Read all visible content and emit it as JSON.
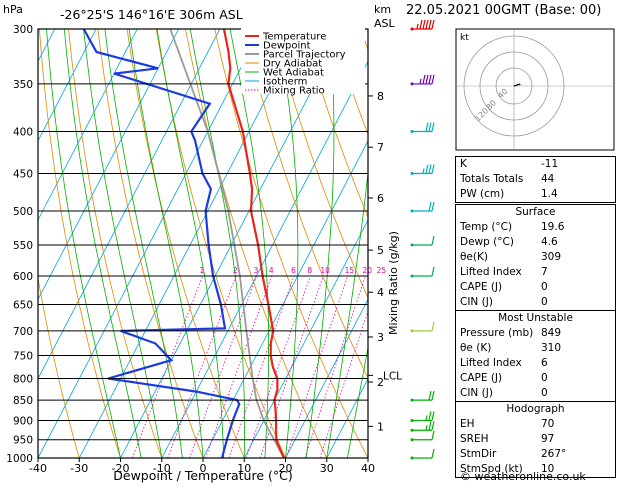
{
  "chart_data": {
    "type": "skewt",
    "station": "-26°25'S  146°16'E  306m  ASL",
    "valid_time": "22.05.2021  00GMT  (Base: 00)",
    "xlabel": "Dewpoint / Temperature (°C)",
    "ylabel_left": "hPa",
    "ylabel_right_top": "km",
    "ylabel_right_top2": "ASL",
    "mixing_ratio_label": "Mixing Ratio (g/kg)",
    "xlim": [
      -40,
      40
    ],
    "ylim": [
      1000,
      300
    ],
    "x_ticks": [
      "-40",
      "-30",
      "-20",
      "-10",
      "0",
      "10",
      "20",
      "30",
      "40"
    ],
    "pressure_ticks": [
      "300",
      "350",
      "400",
      "450",
      "500",
      "550",
      "600",
      "650",
      "700",
      "750",
      "800",
      "850",
      "900",
      "950",
      "1000"
    ],
    "altitude_ticks": [
      {
        "label": "1",
        "p": 915
      },
      {
        "label": "2",
        "p": 808
      },
      {
        "label": "3",
        "p": 712
      },
      {
        "label": "4",
        "p": 628
      },
      {
        "label": "5",
        "p": 558
      },
      {
        "label": "6",
        "p": 482
      },
      {
        "label": "7",
        "p": 418
      },
      {
        "label": "8",
        "p": 362
      }
    ],
    "lcl": {
      "label": "LCL",
      "p": 793
    },
    "mixing_ratio_values": [
      "1",
      "2",
      "3",
      "4",
      "6",
      "8",
      "10",
      "15",
      "20",
      "25"
    ],
    "legend": [
      "Temperature",
      "Dewpoint",
      "Parcel Trajectory",
      "Dry Adiabat",
      "Wet Adiabat",
      "Isotherm",
      "Mixing Ratio"
    ],
    "colors": {
      "temperature": "#e8241c",
      "dewpoint": "#1c3ae0",
      "parcel": "#9a9a9a",
      "dry_adiabat": "#e08a00",
      "wet_adiabat": "#00b000",
      "isotherm": "#00a4e0",
      "mixing_ratio": "#e000b0"
    },
    "temperature": [
      {
        "p": 1000,
        "t": 19.6
      },
      {
        "p": 975,
        "t": 17.5
      },
      {
        "p": 950,
        "t": 15.5
      },
      {
        "p": 925,
        "t": 14.2
      },
      {
        "p": 900,
        "t": 13.0
      },
      {
        "p": 875,
        "t": 11.6
      },
      {
        "p": 850,
        "t": 10.0
      },
      {
        "p": 825,
        "t": 9.4
      },
      {
        "p": 800,
        "t": 8.0
      },
      {
        "p": 775,
        "t": 5.5
      },
      {
        "p": 750,
        "t": 3.5
      },
      {
        "p": 725,
        "t": 2.0
      },
      {
        "p": 700,
        "t": 1.0
      },
      {
        "p": 650,
        "t": -3.5
      },
      {
        "p": 600,
        "t": -8.5
      },
      {
        "p": 550,
        "t": -13.5
      },
      {
        "p": 500,
        "t": -19.5
      },
      {
        "p": 470,
        "t": -22.0
      },
      {
        "p": 450,
        "t": -24.5
      },
      {
        "p": 400,
        "t": -31.5
      },
      {
        "p": 350,
        "t": -41.0
      },
      {
        "p": 335,
        "t": -42.5
      },
      {
        "p": 320,
        "t": -45.0
      },
      {
        "p": 300,
        "t": -49.0
      }
    ],
    "dewpoint": [
      {
        "p": 1000,
        "t": 4.6
      },
      {
        "p": 950,
        "t": 3.5
      },
      {
        "p": 900,
        "t": 2.5
      },
      {
        "p": 860,
        "t": 2.0
      },
      {
        "p": 850,
        "t": 1.0
      },
      {
        "p": 830,
        "t": -10.0
      },
      {
        "p": 800,
        "t": -33.0
      },
      {
        "p": 760,
        "t": -20.0
      },
      {
        "p": 725,
        "t": -26.0
      },
      {
        "p": 700,
        "t": -36.0
      },
      {
        "p": 695,
        "t": -11.0
      },
      {
        "p": 650,
        "t": -15.0
      },
      {
        "p": 600,
        "t": -20.5
      },
      {
        "p": 550,
        "t": -25.5
      },
      {
        "p": 500,
        "t": -30.5
      },
      {
        "p": 470,
        "t": -32.0
      },
      {
        "p": 450,
        "t": -36.0
      },
      {
        "p": 410,
        "t": -42.0
      },
      {
        "p": 400,
        "t": -44.0
      },
      {
        "p": 370,
        "t": -43.0
      },
      {
        "p": 340,
        "t": -70.0
      },
      {
        "p": 335,
        "t": -60.0
      },
      {
        "p": 320,
        "t": -77.0
      },
      {
        "p": 300,
        "t": -83.0
      }
    ],
    "parcel": [
      {
        "p": 1000,
        "t": 19.6
      },
      {
        "p": 900,
        "t": 10.0
      },
      {
        "p": 849,
        "t": 5.6
      },
      {
        "p": 793,
        "t": 1.5
      },
      {
        "p": 700,
        "t": -5.5
      },
      {
        "p": 600,
        "t": -14.0
      },
      {
        "p": 500,
        "t": -25.0
      },
      {
        "p": 400,
        "t": -40.0
      },
      {
        "p": 300,
        "t": -62.0
      }
    ],
    "wind_barbs": [
      {
        "p": 1000,
        "dir": 267,
        "spd": 10
      },
      {
        "p": 950,
        "dir": 270,
        "spd": 10
      },
      {
        "p": 925,
        "dir": 275,
        "spd": 15
      },
      {
        "p": 900,
        "dir": 280,
        "spd": 15
      },
      {
        "p": 850,
        "dir": 300,
        "spd": 20
      },
      {
        "p": 700,
        "dir": 300,
        "spd": 10
      },
      {
        "p": 600,
        "dir": 290,
        "spd": 10
      },
      {
        "p": 550,
        "dir": 280,
        "spd": 10
      },
      {
        "p": 500,
        "dir": 270,
        "spd": 20
      },
      {
        "p": 450,
        "dir": 270,
        "spd": 25
      },
      {
        "p": 400,
        "dir": 270,
        "spd": 30
      },
      {
        "p": 350,
        "dir": 270,
        "spd": 35
      },
      {
        "p": 300,
        "dir": 270,
        "spd": 45
      }
    ],
    "hodograph": {
      "units": "kt",
      "ring_labels": [
        "40",
        "80",
        "120"
      ],
      "points": [
        {
          "u": 0,
          "v": 0
        },
        {
          "u": 4,
          "v": 1
        },
        {
          "u": 8,
          "v": 3
        },
        {
          "u": 12,
          "v": 4
        },
        {
          "u": 14,
          "v": 2
        }
      ]
    }
  },
  "indices": {
    "basic": [
      {
        "label": "K",
        "value": "-11"
      },
      {
        "label": "Totals Totals",
        "value": "44"
      },
      {
        "label": "PW (cm)",
        "value": "1.4"
      }
    ],
    "surface_title": "Surface",
    "surface": [
      {
        "label": "Temp (°C)",
        "value": "19.6"
      },
      {
        "label": "Dewp (°C)",
        "value": "4.6"
      },
      {
        "label": "θe(K)",
        "value": "309"
      },
      {
        "label": "Lifted Index",
        "value": "7"
      },
      {
        "label": "CAPE (J)",
        "value": "0"
      },
      {
        "label": "CIN (J)",
        "value": "0"
      }
    ],
    "unstable_title": "Most Unstable",
    "unstable": [
      {
        "label": "Pressure (mb)",
        "value": "849"
      },
      {
        "label": "θe (K)",
        "value": "310"
      },
      {
        "label": "Lifted Index",
        "value": "6"
      },
      {
        "label": "CAPE (J)",
        "value": "0"
      },
      {
        "label": "CIN (J)",
        "value": "0"
      }
    ],
    "hodo_title": "Hodograph",
    "hodo": [
      {
        "label": "EH",
        "value": "70"
      },
      {
        "label": "SREH",
        "value": "97"
      },
      {
        "label": "StmDir",
        "value": "267°"
      },
      {
        "label": "StmSpd (kt)",
        "value": "10"
      }
    ]
  },
  "hodo_label": "kt",
  "watermark": "© weatheronline.co.uk"
}
